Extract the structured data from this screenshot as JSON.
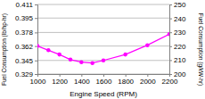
{
  "chart_data": {
    "type": "line",
    "x_label": "Engine Speed (RPM)",
    "y_label": "Fuel Consumption (lb/hp-hr)",
    "y2_label": "Fuel Consumption (g/kW-hr)",
    "x": [
      1000,
      1100,
      1200,
      1300,
      1400,
      1500,
      1600,
      1800,
      2000,
      2200
    ],
    "series": [
      {
        "name": "Fuel Consumption",
        "color": "#ff00ff",
        "marker": "circle",
        "values": [
          0.362,
          0.357,
          0.352,
          0.346,
          0.343,
          0.342,
          0.345,
          0.352,
          0.363,
          0.376
        ]
      }
    ],
    "xlim": [
      1000,
      2200
    ],
    "xticks": [
      1000,
      1200,
      1400,
      1600,
      1800,
      2000,
      2200
    ],
    "ylim": [
      0.329,
      0.411
    ],
    "yticks": [
      0.329,
      0.345,
      0.362,
      0.378,
      0.395,
      0.411
    ],
    "y2lim": [
      200,
      250
    ],
    "y2ticks": [
      200,
      210,
      220,
      230,
      240,
      250
    ],
    "grid": true
  }
}
